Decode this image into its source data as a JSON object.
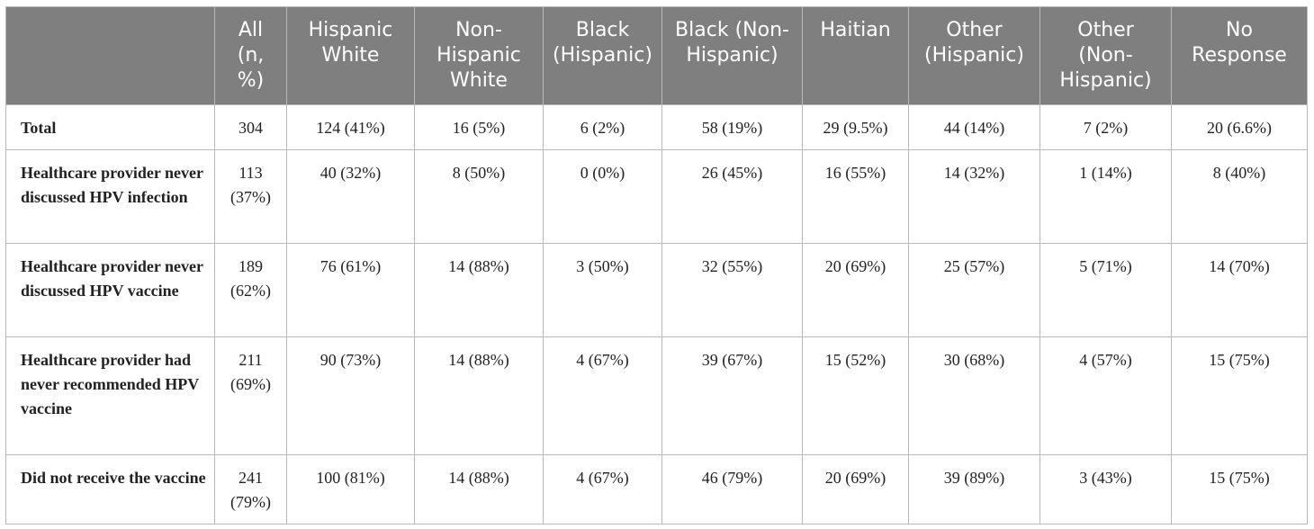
{
  "table": {
    "headers": [
      "",
      "All (n, %)",
      "Hispanic White",
      "Non-Hispanic White",
      "Black (Hispanic)",
      "Black (Non-Hispanic)",
      "Haitian",
      "Other (Hispanic)",
      "Other (Non-Hispanic)",
      "No Response"
    ],
    "rows": [
      {
        "label": "Total",
        "cells": [
          "304",
          "124 (41%)",
          "16 (5%)",
          "6 (2%)",
          "58 (19%)",
          "29 (9.5%)",
          "44 (14%)",
          "7 (2%)",
          "20 (6.6%)"
        ]
      },
      {
        "label": "Healthcare provider never discussed HPV infection",
        "cells": [
          "113 (37%)",
          "40 (32%)",
          "8 (50%)",
          "0 (0%)",
          "26 (45%)",
          "16 (55%)",
          "14 (32%)",
          "1 (14%)",
          "8 (40%)"
        ]
      },
      {
        "label": "Healthcare provider never discussed HPV vaccine",
        "cells": [
          "189 (62%)",
          "76 (61%)",
          "14 (88%)",
          "3 (50%)",
          "32 (55%)",
          "20 (69%)",
          "25 (57%)",
          "5 (71%)",
          "14 (70%)"
        ]
      },
      {
        "label": "Healthcare provider had never recommended HPV vaccine",
        "cells": [
          "211 (69%)",
          "90 (73%)",
          "14 (88%)",
          "4 (67%)",
          "39 (67%)",
          "15 (52%)",
          "30 (68%)",
          "4 (57%)",
          "15 (75%)"
        ]
      },
      {
        "label": "Did not receive the vaccine",
        "cells": [
          "241 (79%)",
          "100 (81%)",
          "14 (88%)",
          "4 (67%)",
          "46 (79%)",
          "20 (69%)",
          "39 (89%)",
          "3 (43%)",
          "15 (75%)"
        ]
      }
    ]
  }
}
